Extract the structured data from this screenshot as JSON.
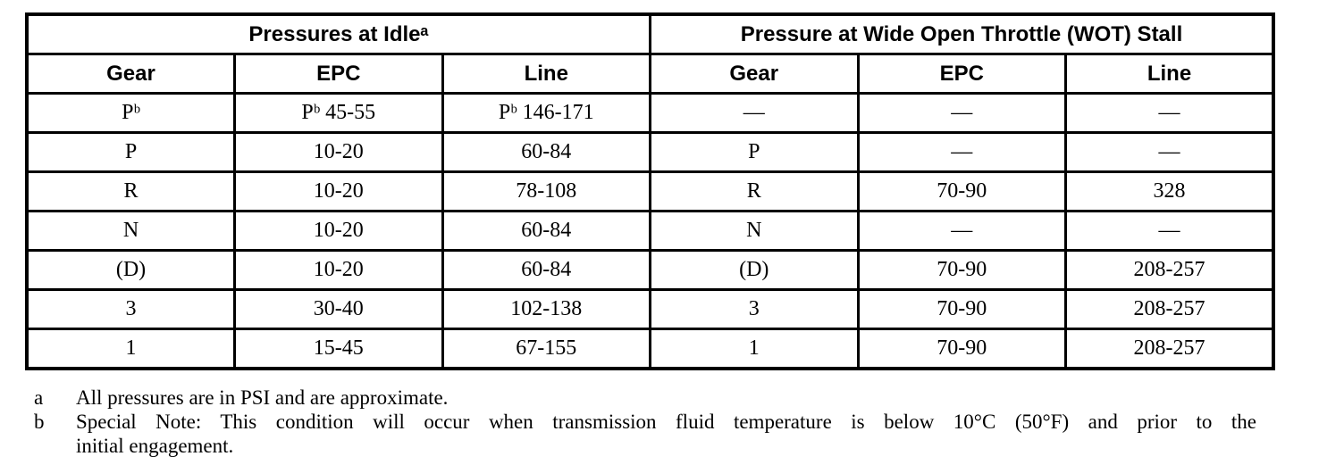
{
  "table": {
    "group_headers": [
      {
        "label": "Pressures at Idleᵃ"
      },
      {
        "label": "Pressure at Wide Open Throttle (WOT) Stall"
      }
    ],
    "column_headers": [
      "Gear",
      "EPC",
      "Line",
      "Gear",
      "EPC",
      "Line"
    ],
    "rows": [
      {
        "cells": [
          "Pᵇ",
          "Pᵇ 45-55",
          "Pᵇ 146-171",
          "—",
          "—",
          "—"
        ]
      },
      {
        "cells": [
          "P",
          "10-20",
          "60-84",
          "P",
          "—",
          "—"
        ]
      },
      {
        "cells": [
          "R",
          "10-20",
          "78-108",
          "R",
          "70-90",
          "328"
        ]
      },
      {
        "cells": [
          "N",
          "10-20",
          "60-84",
          "N",
          "—",
          "—"
        ]
      },
      {
        "cells": [
          "(D)",
          "10-20",
          "60-84",
          "(D)",
          "70-90",
          "208-257"
        ]
      },
      {
        "cells": [
          "3",
          "30-40",
          "102-138",
          "3",
          "70-90",
          "208-257"
        ]
      },
      {
        "cells": [
          "1",
          "15-45",
          "67-155",
          "1",
          "70-90",
          "208-257"
        ]
      }
    ]
  },
  "footnotes": [
    {
      "marker": "a",
      "line1": "All pressures are in PSI and are approximate.",
      "line2": ""
    },
    {
      "marker": "b",
      "line1": "Special Note: This condition will occur when transmission fluid temperature is below 10°C (50°F) and prior to the",
      "line2": "initial engagement."
    }
  ]
}
